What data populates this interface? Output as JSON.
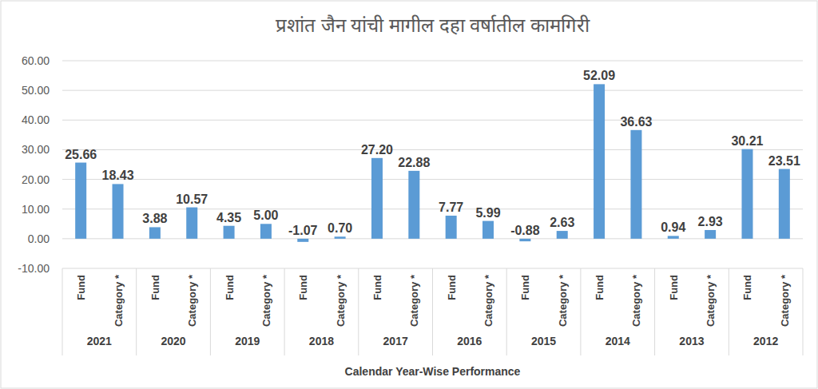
{
  "chart_data": {
    "type": "bar",
    "title": "प्रशांत जैन यांची मागील दहा वर्षातील कामगिरी",
    "x_label": "Calendar Year-Wise Performance",
    "categories": [
      "2021",
      "2020",
      "2019",
      "2018",
      "2017",
      "2016",
      "2015",
      "2014",
      "2013",
      "2012"
    ],
    "series": [
      {
        "name": "Fund",
        "color": "#5b9bd5",
        "values": [
          25.66,
          3.88,
          4.35,
          -1.07,
          27.2,
          7.77,
          -0.88,
          52.09,
          0.94,
          30.21
        ],
        "value_labels": [
          "25.66",
          "3.88",
          "4.35",
          "-1.07",
          "27.20",
          "7.77",
          "-0.88",
          "52.09",
          "0.94",
          "30.21"
        ]
      },
      {
        "name": "Category *",
        "color": "#5b9bd5",
        "values": [
          18.43,
          10.57,
          5.0,
          0.7,
          22.88,
          5.99,
          2.63,
          36.63,
          2.93,
          23.51
        ],
        "value_labels": [
          "18.43",
          "10.57",
          "5.00",
          "0.70",
          "22.88",
          "5.99",
          "2.63",
          "36.63",
          "2.93",
          "23.51"
        ]
      }
    ],
    "ylim": [
      -10,
      60
    ],
    "yticks": [
      {
        "value": -10,
        "label": "-10.00"
      },
      {
        "value": 0,
        "label": "0.00"
      },
      {
        "value": 10,
        "label": "10.00"
      },
      {
        "value": 20,
        "label": "20.00"
      },
      {
        "value": 30,
        "label": "30.00"
      },
      {
        "value": 40,
        "label": "40.00"
      },
      {
        "value": 50,
        "label": "50.00"
      },
      {
        "value": 60,
        "label": "60.00"
      }
    ],
    "grid": true,
    "data_labels": true
  }
}
